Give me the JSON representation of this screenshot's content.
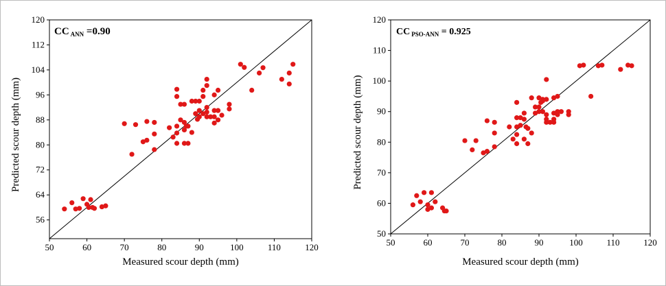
{
  "chart_data": [
    {
      "type": "scatter",
      "title": "",
      "annotation": {
        "prefix": "CC",
        "subscript": "ANN",
        "suffix": " =0.90"
      },
      "xlabel": "Measured scour depth (mm)",
      "ylabel": "Predicted scour depth (mm)",
      "xlim": [
        50,
        120
      ],
      "ylim": [
        50,
        120
      ],
      "xticks": [
        50,
        60,
        70,
        80,
        90,
        100,
        110,
        120
      ],
      "yticks": [
        56,
        64,
        72,
        80,
        88,
        96,
        104,
        112,
        120
      ],
      "reference_line": "y = x",
      "marker_color": "#e01818",
      "points": [
        [
          54,
          59.5
        ],
        [
          56,
          61.5
        ],
        [
          57,
          59.5
        ],
        [
          58,
          59.7
        ],
        [
          59,
          62.8
        ],
        [
          60,
          61
        ],
        [
          60.5,
          60
        ],
        [
          61,
          62.5
        ],
        [
          61.5,
          60
        ],
        [
          62,
          59.7
        ],
        [
          64,
          60.2
        ],
        [
          65,
          60.5
        ],
        [
          70,
          86.8
        ],
        [
          72,
          77
        ],
        [
          73,
          86.5
        ],
        [
          75,
          81
        ],
        [
          76,
          87.5
        ],
        [
          76,
          81.5
        ],
        [
          78,
          87.2
        ],
        [
          78,
          83.5
        ],
        [
          78,
          78.5
        ],
        [
          82,
          85.5
        ],
        [
          83,
          82.5
        ],
        [
          84,
          97.8
        ],
        [
          84,
          95.5
        ],
        [
          84,
          86
        ],
        [
          84,
          83.8
        ],
        [
          84,
          80.5
        ],
        [
          85,
          93
        ],
        [
          85,
          88
        ],
        [
          86,
          93
        ],
        [
          86,
          87.2
        ],
        [
          86,
          84.8
        ],
        [
          86,
          80.5
        ],
        [
          86.5,
          86
        ],
        [
          87,
          80.5
        ],
        [
          87,
          86
        ],
        [
          88,
          94
        ],
        [
          88,
          84
        ],
        [
          89,
          94
        ],
        [
          89,
          90
        ],
        [
          89.5,
          88.2
        ],
        [
          90,
          94
        ],
        [
          90,
          91
        ],
        [
          90,
          89
        ],
        [
          91,
          97.5
        ],
        [
          91,
          95.5
        ],
        [
          91,
          90
        ],
        [
          92,
          101
        ],
        [
          92,
          99
        ],
        [
          92,
          92
        ],
        [
          92,
          90.5
        ],
        [
          92,
          89
        ],
        [
          93,
          89
        ],
        [
          94,
          96
        ],
        [
          94,
          91
        ],
        [
          94,
          89
        ],
        [
          94,
          87
        ],
        [
          95,
          97.5
        ],
        [
          95,
          91
        ],
        [
          95,
          88
        ],
        [
          96,
          89.5
        ],
        [
          98,
          93
        ],
        [
          98,
          91.5
        ],
        [
          101,
          105.8
        ],
        [
          102,
          104.8
        ],
        [
          104,
          97.5
        ],
        [
          106,
          103
        ],
        [
          107,
          104.7
        ],
        [
          112,
          101
        ],
        [
          114,
          103
        ],
        [
          114,
          99.5
        ],
        [
          115,
          105.8
        ]
      ]
    },
    {
      "type": "scatter",
      "title": "",
      "annotation": {
        "prefix": "CC",
        "subscript": "PSO-ANN",
        "suffix": " = 0.925"
      },
      "xlabel": "Measured scour depth (mm)",
      "ylabel": "Predicted scour depth (mm)",
      "xlim": [
        50,
        120
      ],
      "ylim": [
        50,
        120
      ],
      "xticks": [
        50,
        60,
        70,
        80,
        90,
        100,
        110,
        120
      ],
      "yticks": [
        50,
        60,
        70,
        80,
        90,
        100,
        110,
        120
      ],
      "reference_line": "y = x",
      "marker_color": "#e01818",
      "points": [
        [
          56,
          59.5
        ],
        [
          57,
          62.5
        ],
        [
          58,
          60.5
        ],
        [
          59,
          63.5
        ],
        [
          60,
          58
        ],
        [
          60,
          59.5
        ],
        [
          61,
          63.5
        ],
        [
          61,
          58.5
        ],
        [
          62,
          60.5
        ],
        [
          64,
          58.5
        ],
        [
          64.5,
          57.5
        ],
        [
          65,
          57.5
        ],
        [
          70,
          80.5
        ],
        [
          72,
          77.5
        ],
        [
          73,
          80.5
        ],
        [
          75,
          76.5
        ],
        [
          76,
          87
        ],
        [
          76,
          77
        ],
        [
          78,
          86.5
        ],
        [
          78,
          83
        ],
        [
          78,
          78.5
        ],
        [
          82,
          85
        ],
        [
          83,
          81
        ],
        [
          84,
          93
        ],
        [
          84,
          88
        ],
        [
          84,
          85
        ],
        [
          84,
          82.5
        ],
        [
          84,
          79.5
        ],
        [
          85,
          88
        ],
        [
          85,
          85.5
        ],
        [
          86,
          89.5
        ],
        [
          86,
          87.5
        ],
        [
          86,
          81
        ],
        [
          86.5,
          85
        ],
        [
          87,
          79.5
        ],
        [
          87,
          84.5
        ],
        [
          88,
          94.5
        ],
        [
          88,
          83
        ],
        [
          89,
          91.5
        ],
        [
          89,
          89.5
        ],
        [
          90,
          94.5
        ],
        [
          90,
          91.5
        ],
        [
          90,
          90
        ],
        [
          90.5,
          93
        ],
        [
          91,
          94
        ],
        [
          91,
          93.5
        ],
        [
          91,
          90
        ],
        [
          92,
          100.5
        ],
        [
          92,
          94
        ],
        [
          92,
          89
        ],
        [
          92,
          87.5
        ],
        [
          92,
          86.5
        ],
        [
          93,
          86.5
        ],
        [
          94,
          94.5
        ],
        [
          94,
          89.5
        ],
        [
          94,
          87.5
        ],
        [
          94,
          86.5
        ],
        [
          95,
          95
        ],
        [
          95,
          90
        ],
        [
          95,
          89
        ],
        [
          96,
          90
        ],
        [
          98,
          90
        ],
        [
          98,
          89
        ],
        [
          101,
          105
        ],
        [
          102,
          105.2
        ],
        [
          104,
          95
        ],
        [
          106,
          105
        ],
        [
          107,
          105.2
        ],
        [
          112,
          103.8
        ],
        [
          114,
          105.2
        ],
        [
          115,
          105
        ]
      ]
    }
  ]
}
